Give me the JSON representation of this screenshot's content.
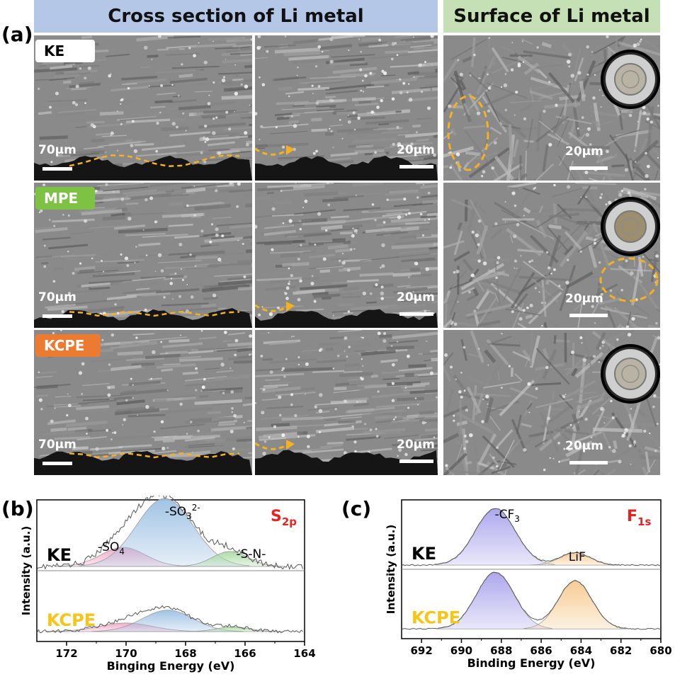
{
  "headers": {
    "cross_section": "Cross section of Li metal",
    "surface": "Surface of Li metal"
  },
  "panel_labels": {
    "a": "(a)",
    "b": "(b)",
    "c": "(c)"
  },
  "rows": [
    {
      "tag": "KE",
      "tag_color": "#ffffff",
      "scale_low": "70µm",
      "scale_high": "20µm",
      "scale_surface": "20µm"
    },
    {
      "tag": "MPE",
      "tag_color": "#7dc242",
      "scale_low": "70µm",
      "scale_high": "20µm",
      "scale_surface": "20µm"
    },
    {
      "tag": "KCPE",
      "tag_color": "#ec7a30",
      "scale_low": "70µm",
      "scale_high": "20µm",
      "scale_surface": "20µm"
    }
  ],
  "annotation_color": "#f5b120",
  "chart_data": [
    {
      "type": "line",
      "panel": "(b)",
      "element_label": {
        "main": "S",
        "sub": "2p"
      },
      "element_label_color": "#e8231f",
      "xlabel": "Binging Energy (eV)",
      "ylabel": "Intensity (a.u.)",
      "xlim": [
        173,
        164
      ],
      "x_ticks": [
        "172",
        "170",
        "168",
        "166",
        "164"
      ],
      "samples": [
        {
          "name": "KE",
          "name_color": "#000000"
        },
        {
          "name": "KCPE",
          "name_color": "#f5c518"
        }
      ],
      "peaks": [
        {
          "label": "-SO",
          "sub": "4",
          "center": 170.1,
          "color": "#f2a6c6"
        },
        {
          "label": "-SO",
          "sub": "3",
          "sup": "2-",
          "center": 168.7,
          "color": "#9cc0e3"
        },
        {
          "label": "-S-N-",
          "center": 166.5,
          "color": "#a9d9a1"
        }
      ],
      "series": [
        {
          "name": "KE",
          "components": [
            {
              "center": 170.1,
              "height": 0.28,
              "width": 0.75
            },
            {
              "center": 168.7,
              "height": 1.0,
              "width": 0.95
            },
            {
              "center": 166.5,
              "height": 0.22,
              "width": 0.6
            }
          ]
        },
        {
          "name": "KCPE",
          "components": [
            {
              "center": 170.0,
              "height": 0.22,
              "width": 0.9
            },
            {
              "center": 168.6,
              "height": 0.55,
              "width": 0.85
            },
            {
              "center": 166.4,
              "height": 0.12,
              "width": 0.55
            }
          ]
        }
      ]
    },
    {
      "type": "line",
      "panel": "(c)",
      "element_label": {
        "main": "F",
        "sub": "1s"
      },
      "element_label_color": "#e8231f",
      "xlabel": "Binding Energy (eV)",
      "ylabel": "Intensity (a.u.)",
      "xlim": [
        693,
        680
      ],
      "x_ticks": [
        "692",
        "690",
        "688",
        "686",
        "684",
        "682",
        "680"
      ],
      "samples": [
        {
          "name": "KE",
          "name_color": "#000000"
        },
        {
          "name": "KCPE",
          "name_color": "#f5c518"
        }
      ],
      "peaks": [
        {
          "label": "-CF",
          "sub": "3",
          "center": 688.3,
          "color": "#a9a3ec"
        },
        {
          "label": "LiF",
          "center": 684.3,
          "color": "#f7c98e"
        }
      ],
      "series": [
        {
          "name": "KE",
          "components": [
            {
              "center": 688.3,
              "height": 1.0,
              "width": 1.0
            },
            {
              "center": 684.3,
              "height": 0.22,
              "width": 0.75
            }
          ]
        },
        {
          "name": "KCPE",
          "components": [
            {
              "center": 688.3,
              "height": 1.0,
              "width": 0.95
            },
            {
              "center": 684.3,
              "height": 0.85,
              "width": 0.85
            }
          ]
        }
      ]
    }
  ]
}
